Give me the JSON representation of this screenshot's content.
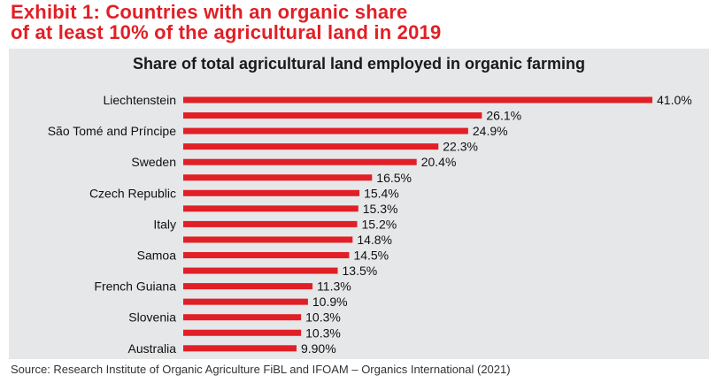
{
  "exhibit_title": {
    "line1": "Exhibit 1: Countries with an organic share",
    "line2": "of at least 10% of the agricultural land in 2019"
  },
  "source": "Source: Research Institute of Organic Agriculture FiBL and IFOAM – Organics International (2021)",
  "colors": {
    "bar": "#e11f26",
    "title": "#e11f26",
    "panel": "#e6e7e8"
  },
  "chart_data": {
    "type": "bar",
    "orientation": "horizontal",
    "title": "Share of total agricultural land employed in organic farming",
    "categories": [
      "Liechtenstein",
      "",
      "São Tomé and Príncipe",
      "",
      "Sweden",
      "",
      "Czech Republic",
      "",
      "Italy",
      "",
      "Samoa",
      "",
      "French Guiana",
      "",
      "Slovenia",
      "",
      "Australia"
    ],
    "values": [
      41.0,
      26.1,
      24.9,
      22.3,
      20.4,
      16.5,
      15.4,
      15.3,
      15.2,
      14.8,
      14.5,
      13.5,
      11.3,
      10.9,
      10.3,
      10.3,
      9.9
    ],
    "data_labels": [
      "41.0%",
      "26.1%",
      "24.9%",
      "22.3%",
      "20.4%",
      "16.5%",
      "15.4%",
      "15.3%",
      "15.2%",
      "14.8%",
      "14.5%",
      "13.5%",
      "11.3%",
      "10.9%",
      "10.3%",
      "10.3%",
      "9.90%"
    ],
    "xlim": [
      0,
      41.0
    ],
    "grid": false,
    "legend": "none"
  }
}
